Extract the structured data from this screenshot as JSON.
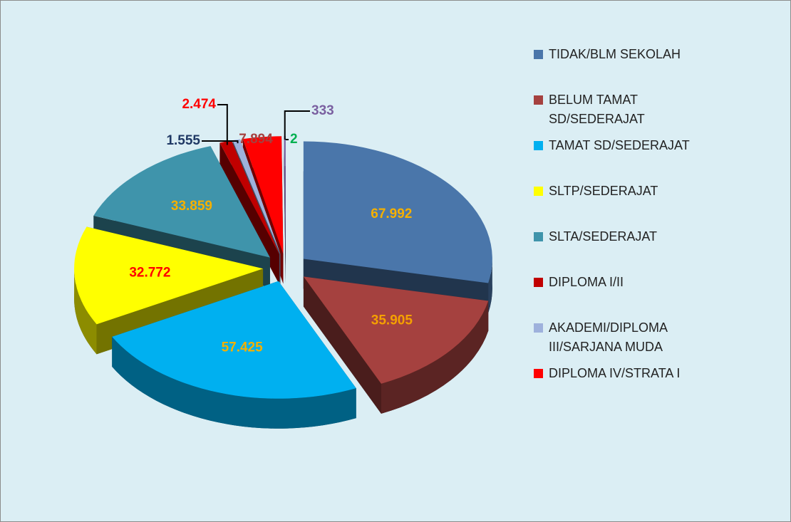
{
  "chart_data": {
    "type": "pie3d",
    "categories": [
      "TIDAK/BLM SEKOLAH",
      "BELUM TAMAT SD/SEDERAJAT",
      "TAMAT SD/SEDERAJAT",
      "SLTP/SEDERAJAT",
      "SLTA/SEDERAJAT",
      "DIPLOMA I/II",
      "AKADEMI/DIPLOMA III/SARJANA MUDA",
      "DIPLOMA IV/STRATA I",
      null,
      null
    ],
    "values": [
      67992,
      35905,
      57425,
      32772,
      33859,
      2474,
      1555,
      7894,
      333,
      2
    ],
    "value_labels": [
      "67.992",
      "35.905",
      "57.425",
      "32.772",
      "33.859",
      "2.474",
      "1.555",
      "7.894",
      "333",
      "2"
    ],
    "colors": [
      "#4a76aa",
      "#a5413f",
      "#00b0f0",
      "#ffff00",
      "#3f94ab",
      "#c00000",
      "#9eb1dc",
      "#ff0000",
      "#7a5fa0",
      "#92d050"
    ],
    "label_colors": [
      "#f5b000",
      "#f5a000",
      "#f5b000",
      "#ff0000",
      "#f5b000",
      "#ff0000",
      "#1f3864",
      "#a5413f",
      "#7a5fa0",
      "#00b050"
    ],
    "legend": "right"
  }
}
